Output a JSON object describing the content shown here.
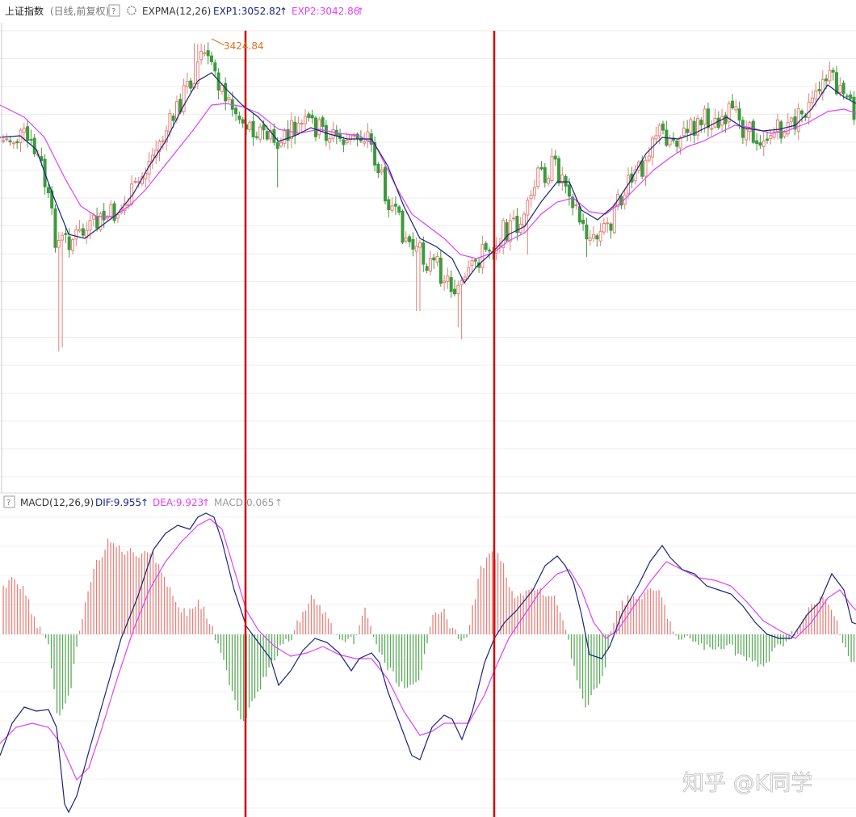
{
  "price_panel": {
    "symbol": "上证指数",
    "mode": "(日线,前复权)",
    "help_icon": "help-icon",
    "settings_icon": "gear-icon",
    "indicator": "EXPMA(12,26)",
    "exp1_label": "EXP1:3052.82",
    "exp2_label": "EXP2:3042.86",
    "peak_label": "3424.84",
    "arrow": "↑"
  },
  "macd_panel": {
    "help_icon": "help-icon",
    "indicator": "MACD(12,26,9)",
    "dif_label": "DIF:9.955",
    "dea_label": "DEA:9.923",
    "macd_label": "MACD:0.065",
    "arrow": "↑"
  },
  "watermark": "知乎 @K同学",
  "colors": {
    "up": "#e8807a",
    "down": "#3d9a3d",
    "exp1": "#1a237e",
    "exp2": "#e040fb",
    "marker": "#d00000",
    "peak": "#e07020",
    "macd_up": "#e8807a",
    "macd_down": "#5aab5a"
  },
  "chart_data": [
    {
      "type": "line",
      "subtype": "candlestick-with-expma",
      "series": [
        {
          "name": "EXP1",
          "last": 3052.82
        },
        {
          "name": "EXP2",
          "last": 3042.86
        }
      ],
      "annotations": [
        {
          "label": "3424.84",
          "kind": "peak-high"
        }
      ],
      "grid": true
    },
    {
      "type": "bar",
      "subtype": "macd-histogram-with-lines",
      "series": [
        {
          "name": "DIF",
          "last": 9.955
        },
        {
          "name": "DEA",
          "last": 9.923
        },
        {
          "name": "MACD",
          "last": 0.065
        }
      ],
      "grid": true
    }
  ]
}
